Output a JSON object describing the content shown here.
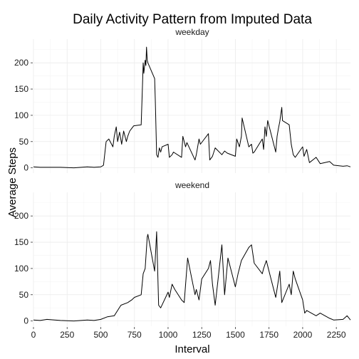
{
  "chart_data": {
    "type": "line",
    "title": "Daily Activity Pattern from Imputed Data",
    "xlabel": "Interval",
    "ylabel": "Average Steps",
    "xlim": [
      0,
      2355
    ],
    "ylim": [
      0,
      230
    ],
    "x_ticks": [
      0,
      250,
      500,
      750,
      1000,
      1250,
      1500,
      1750,
      2000,
      2250
    ],
    "y_ticks": [
      0,
      50,
      100,
      150,
      200
    ],
    "grid": true,
    "line_color": "#000000",
    "panels": [
      {
        "name": "weekday",
        "x": [
          0,
          50,
          100,
          200,
          300,
          400,
          450,
          500,
          515,
          520,
          540,
          560,
          590,
          600,
          615,
          625,
          640,
          655,
          670,
          690,
          700,
          715,
          730,
          745,
          800,
          810,
          815,
          820,
          830,
          835,
          840,
          845,
          850,
          900,
          905,
          915,
          925,
          935,
          945,
          955,
          1000,
          1010,
          1030,
          1040,
          1100,
          1110,
          1130,
          1140,
          1200,
          1210,
          1230,
          1240,
          1300,
          1310,
          1330,
          1350,
          1400,
          1420,
          1440,
          1500,
          1510,
          1530,
          1545,
          1550,
          1600,
          1620,
          1630,
          1640,
          1700,
          1710,
          1720,
          1730,
          1740,
          1800,
          1810,
          1820,
          1830,
          1845,
          1850,
          1900,
          1915,
          1930,
          1945,
          2000,
          2010,
          2030,
          2050,
          2100,
          2130,
          2200,
          2230,
          2300,
          2330,
          2355
        ],
        "y": [
          2,
          1,
          1,
          1,
          0,
          2,
          1,
          2,
          4,
          5,
          50,
          55,
          40,
          60,
          78,
          50,
          68,
          45,
          70,
          50,
          60,
          70,
          75,
          80,
          82,
          160,
          200,
          180,
          205,
          195,
          230,
          205,
          200,
          170,
          130,
          25,
          20,
          38,
          30,
          40,
          45,
          20,
          25,
          30,
          20,
          60,
          40,
          48,
          15,
          25,
          55,
          45,
          65,
          15,
          22,
          38,
          25,
          32,
          28,
          22,
          55,
          40,
          60,
          95,
          40,
          45,
          28,
          30,
          55,
          35,
          78,
          60,
          90,
          30,
          60,
          75,
          88,
          115,
          90,
          82,
          45,
          25,
          20,
          40,
          22,
          35,
          10,
          20,
          8,
          12,
          5,
          3,
          4,
          2
        ]
      },
      {
        "name": "weekend",
        "x": [
          0,
          50,
          100,
          200,
          300,
          400,
          450,
          500,
          550,
          600,
          625,
          650,
          700,
          730,
          750,
          800,
          815,
          830,
          845,
          850,
          900,
          915,
          930,
          945,
          1000,
          1010,
          1030,
          1050,
          1100,
          1120,
          1145,
          1200,
          1210,
          1230,
          1250,
          1300,
          1315,
          1330,
          1350,
          1400,
          1420,
          1445,
          1500,
          1520,
          1545,
          1600,
          1620,
          1640,
          1700,
          1710,
          1730,
          1745,
          1800,
          1815,
          1830,
          1845,
          1900,
          1915,
          1930,
          1945,
          2000,
          2015,
          2030,
          2100,
          2130,
          2200,
          2230,
          2300,
          2330,
          2355
        ],
        "y": [
          2,
          1,
          3,
          1,
          0,
          2,
          1,
          3,
          8,
          10,
          20,
          30,
          35,
          40,
          45,
          50,
          90,
          100,
          160,
          165,
          95,
          170,
          30,
          25,
          55,
          45,
          70,
          60,
          40,
          35,
          120,
          50,
          60,
          40,
          80,
          100,
          115,
          70,
          30,
          145,
          50,
          120,
          65,
          90,
          115,
          140,
          145,
          110,
          90,
          100,
          115,
          100,
          45,
          70,
          95,
          35,
          70,
          50,
          95,
          80,
          40,
          15,
          20,
          10,
          15,
          5,
          2,
          3,
          10,
          2
        ]
      }
    ]
  }
}
